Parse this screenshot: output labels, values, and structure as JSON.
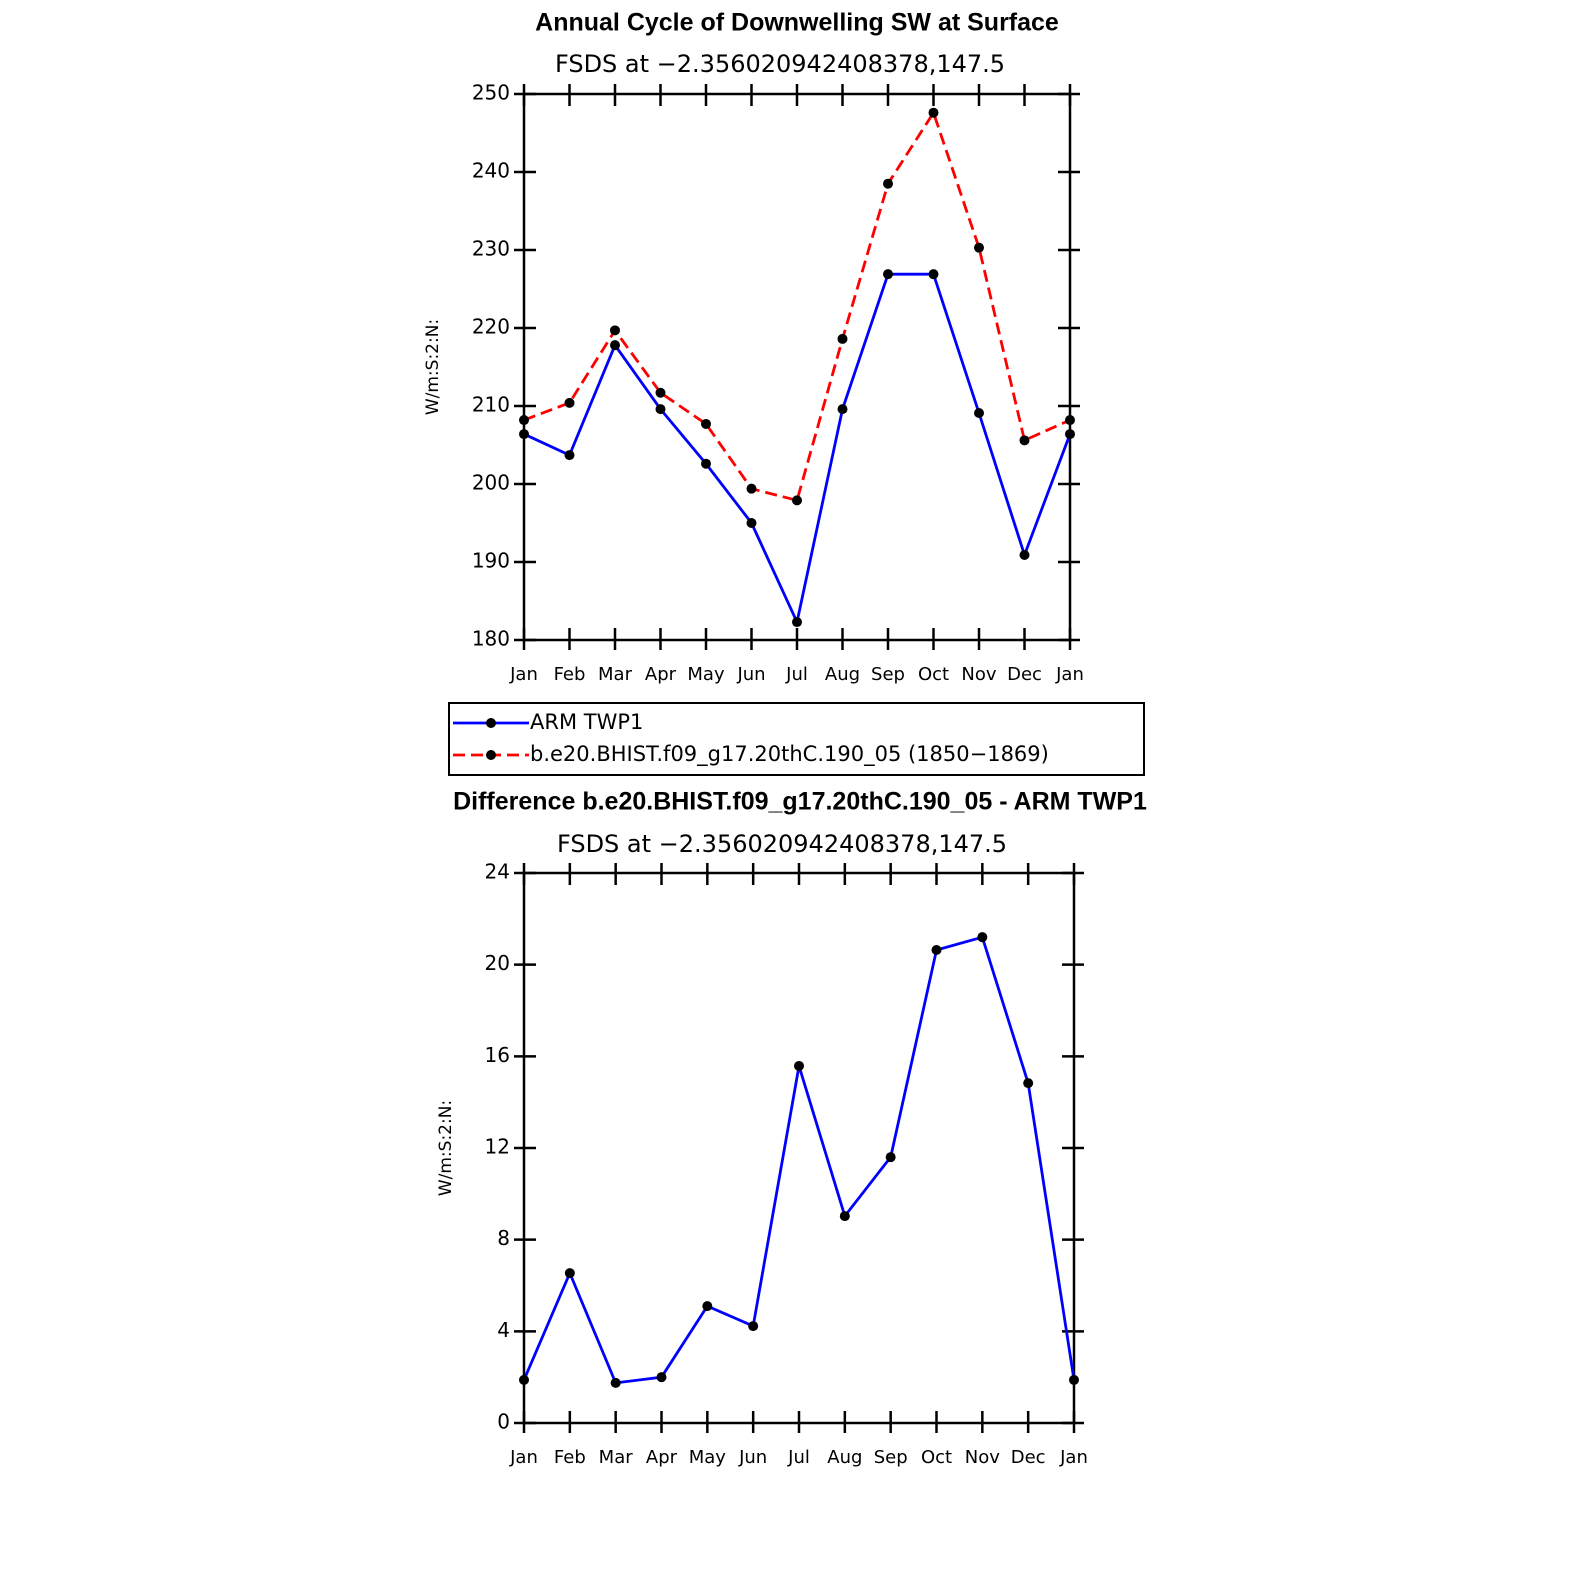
{
  "chart_data": [
    {
      "type": "line",
      "title": "Annual Cycle of Downwelling SW at Surface",
      "subtitle": "FSDS at −2.356020942408378,147.5",
      "y_label": "W/m:S:2:N:",
      "categories": [
        "Jan",
        "Feb",
        "Mar",
        "Apr",
        "May",
        "Jun",
        "Jul",
        "Aug",
        "Sep",
        "Oct",
        "Nov",
        "Dec",
        "Jan"
      ],
      "series": [
        {
          "name": "ARM TWP1",
          "color": "#0000ff",
          "line_style": "solid",
          "values": [
            206.4,
            203.7,
            217.8,
            209.6,
            202.6,
            195.0,
            182.3,
            209.6,
            226.9,
            226.9,
            209.1,
            190.9,
            206.4
          ]
        },
        {
          "name": "b.e20.BHIST.f09_g17.20thC.190_05 (1850−1869)",
          "color": "#ff0000",
          "line_style": "dashed",
          "values": [
            208.2,
            210.4,
            219.7,
            211.7,
            207.7,
            199.4,
            197.9,
            218.6,
            238.5,
            247.6,
            230.3,
            205.6,
            208.2
          ]
        }
      ],
      "marker_color": "#000000",
      "ylim": [
        180,
        250
      ],
      "yticks": [
        180,
        190,
        200,
        210,
        220,
        230,
        240,
        250
      ]
    },
    {
      "type": "line",
      "title": "Difference b.e20.BHIST.f09_g17.20thC.190_05 - ARM TWP1",
      "subtitle": "FSDS at −2.356020942408378,147.5",
      "y_label": "W/m:S:2:N:",
      "categories": [
        "Jan",
        "Feb",
        "Mar",
        "Apr",
        "May",
        "Jun",
        "Jul",
        "Aug",
        "Sep",
        "Oct",
        "Nov",
        "Dec",
        "Jan"
      ],
      "series": [
        {
          "color": "#0000ff",
          "line_style": "solid",
          "values": [
            1.88,
            6.54,
            1.75,
            2.0,
            5.1,
            4.23,
            15.58,
            9.03,
            11.6,
            20.64,
            21.2,
            14.83,
            1.88
          ]
        }
      ],
      "marker_color": "#000000",
      "ylim": [
        0,
        24
      ],
      "yticks": [
        0,
        4,
        8,
        12,
        16,
        20,
        24
      ]
    }
  ]
}
